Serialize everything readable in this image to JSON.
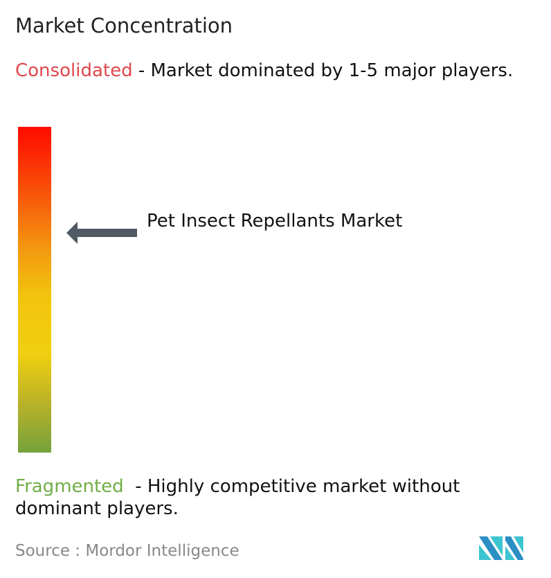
{
  "title": "Market Concentration",
  "consolidated": {
    "label": "Consolidated",
    "description": " - Market dominated by 1-5 major players.",
    "color": "#e0474c"
  },
  "fragmented": {
    "label": "Fragmented",
    "description": "  - Highly competitive market without dominant players.",
    "color": "#70ad47"
  },
  "market_label": "Pet Insect Repellants Market",
  "source": "Source :  Mordor Intelligence",
  "colors": {
    "gradient_top": "#ff0a00",
    "gradient_mid": "#f0cf10",
    "gradient_bottom": "#76a23c",
    "arrow": "#505a64"
  }
}
